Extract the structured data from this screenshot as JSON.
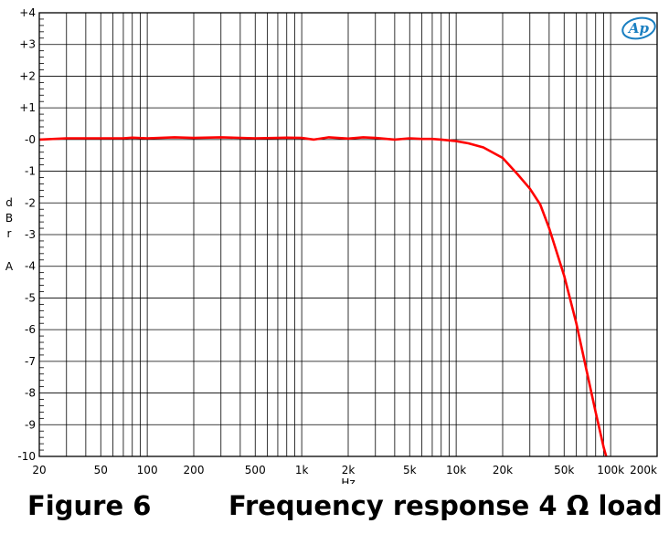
{
  "caption": {
    "figure": "Figure 6",
    "title": "Frequency response 4 Ω load"
  },
  "logo_text": "Ap",
  "chart_data": {
    "type": "line",
    "xlabel": "Hz",
    "ylabel": [
      "d",
      "B",
      "r",
      "",
      "A"
    ],
    "xscale": "log",
    "xlim": [
      20,
      200000
    ],
    "ylim": [
      -10,
      4
    ],
    "grid": true,
    "x_ticks": [
      {
        "v": 20,
        "label": "20"
      },
      {
        "v": 50,
        "label": "50"
      },
      {
        "v": 100,
        "label": "100"
      },
      {
        "v": 200,
        "label": "200"
      },
      {
        "v": 500,
        "label": "500"
      },
      {
        "v": 1000,
        "label": "1k"
      },
      {
        "v": 2000,
        "label": "2k"
      },
      {
        "v": 5000,
        "label": "5k"
      },
      {
        "v": 10000,
        "label": "10k"
      },
      {
        "v": 20000,
        "label": "20k"
      },
      {
        "v": 50000,
        "label": "50k"
      },
      {
        "v": 100000,
        "label": "100k"
      },
      {
        "v": 200000,
        "label": "200k"
      }
    ],
    "y_ticks": [
      {
        "v": 4,
        "label": "+4"
      },
      {
        "v": 3,
        "label": "+3"
      },
      {
        "v": 2,
        "label": "+2"
      },
      {
        "v": 1,
        "label": "+1"
      },
      {
        "v": 0,
        "label": "-0"
      },
      {
        "v": -1,
        "label": "-1"
      },
      {
        "v": -2,
        "label": "-2"
      },
      {
        "v": -3,
        "label": "-3"
      },
      {
        "v": -4,
        "label": "-4"
      },
      {
        "v": -5,
        "label": "-5"
      },
      {
        "v": -6,
        "label": "-6"
      },
      {
        "v": -7,
        "label": "-7"
      },
      {
        "v": -8,
        "label": "-8"
      },
      {
        "v": -9,
        "label": "-9"
      },
      {
        "v": -10,
        "label": "-10"
      }
    ],
    "series": [
      {
        "color": "#ff0000",
        "x": [
          20,
          30,
          50,
          70,
          80,
          100,
          150,
          200,
          300,
          500,
          700,
          800,
          1000,
          1200,
          1500,
          2000,
          2500,
          3000,
          4000,
          5000,
          6000,
          7000,
          8000,
          10000,
          12000,
          15000,
          20000,
          25000,
          30000,
          35000,
          40000,
          50000,
          60000,
          70000,
          80000,
          90000,
          100000
        ],
        "y": [
          0.0,
          0.04,
          0.04,
          0.04,
          0.06,
          0.04,
          0.07,
          0.05,
          0.07,
          0.04,
          0.05,
          0.06,
          0.05,
          0.0,
          0.07,
          0.03,
          0.07,
          0.05,
          0.0,
          0.04,
          0.02,
          0.02,
          0.0,
          -0.05,
          -0.12,
          -0.25,
          -0.58,
          -1.1,
          -1.55,
          -2.05,
          -2.8,
          -4.3,
          -5.8,
          -7.3,
          -8.6,
          -9.7,
          -10.5
        ]
      }
    ]
  }
}
